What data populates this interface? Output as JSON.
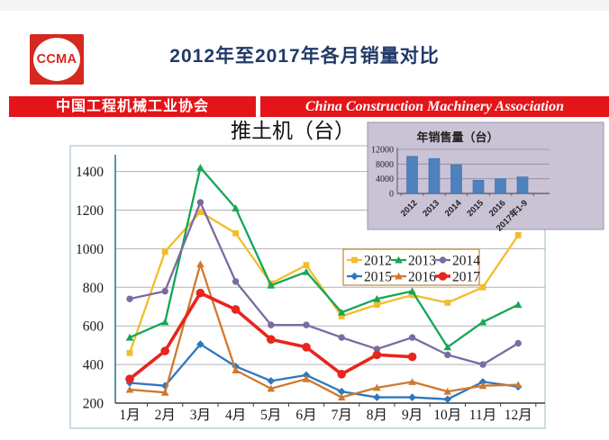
{
  "logo": {
    "text": "CCMA",
    "color": "#D5291F"
  },
  "header": {
    "title": "2012年至2017年各月销量对比",
    "color": "#213A68"
  },
  "banner": {
    "left_text": "中国工程机械工业协会",
    "right_text": "China Construction Machinery Association",
    "bg": "#E41418",
    "text_color": "#FFFFFF"
  },
  "chart_data": [
    {
      "id": "monthly-sales-lines",
      "type": "line",
      "title": "推土机（台）",
      "categories": [
        "1月",
        "2月",
        "3月",
        "4月",
        "5月",
        "6月",
        "7月",
        "8月",
        "9月",
        "10月",
        "11月",
        "12月"
      ],
      "ylim": [
        200,
        1400
      ],
      "yticks": [
        200,
        400,
        600,
        800,
        1000,
        1200,
        1400
      ],
      "grid": true,
      "legend_position": "inside-right",
      "legend_border_color": "#CE9550",
      "series": [
        {
          "name": "2012",
          "color": "#F2BD2B",
          "marker": "square",
          "values": [
            460,
            985,
            1190,
            1080,
            820,
            915,
            650,
            710,
            760,
            720,
            800,
            1070
          ]
        },
        {
          "name": "2013",
          "color": "#16A656",
          "marker": "triangle",
          "values": [
            540,
            620,
            1420,
            1210,
            810,
            880,
            670,
            740,
            780,
            490,
            620,
            710
          ]
        },
        {
          "name": "2014",
          "color": "#7A6BA3",
          "marker": "circle",
          "values": [
            740,
            780,
            1240,
            830,
            605,
            605,
            540,
            480,
            540,
            450,
            400,
            510
          ]
        },
        {
          "name": "2015",
          "color": "#2E78BC",
          "marker": "diamond",
          "values": [
            305,
            290,
            505,
            390,
            315,
            345,
            260,
            230,
            230,
            220,
            310,
            285
          ]
        },
        {
          "name": "2016",
          "color": "#D1782F",
          "marker": "triangle",
          "values": [
            270,
            255,
            920,
            370,
            275,
            325,
            230,
            280,
            310,
            260,
            290,
            295
          ]
        },
        {
          "name": "2017",
          "color": "#E8251E",
          "marker": "circle",
          "thick": true,
          "values": [
            325,
            470,
            770,
            685,
            530,
            490,
            350,
            450,
            440
          ]
        }
      ]
    },
    {
      "id": "annual-sales-bars",
      "type": "bar",
      "title": "年销售量（台）",
      "categories": [
        "2012",
        "2013",
        "2014",
        "2015",
        "2016",
        "2017年1-9"
      ],
      "values": [
        10100,
        9500,
        7800,
        3600,
        4000,
        4500
      ],
      "ylim": [
        0,
        12000
      ],
      "yticks": [
        0,
        4000,
        8000,
        12000
      ],
      "grid": true,
      "bar_color": "#4F81BD",
      "panel_bg": "#CAC3D6"
    }
  ]
}
